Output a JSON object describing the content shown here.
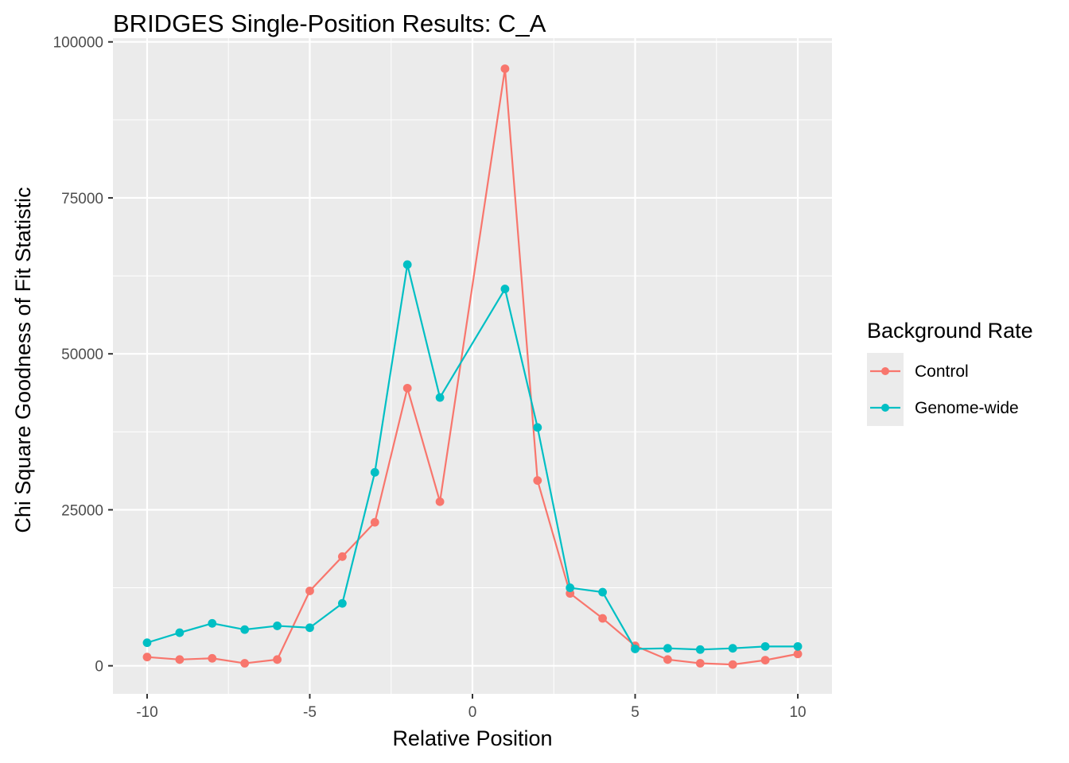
{
  "chart_data": {
    "type": "line",
    "title": "BRIDGES Single-Position Results: C_A",
    "xlabel": "Relative Position",
    "ylabel": "Chi Square Goodness of Fit Statistic",
    "x": [
      -10,
      -9,
      -8,
      -7,
      -6,
      -5,
      -4,
      -3,
      -2,
      -1,
      1,
      2,
      3,
      4,
      5,
      6,
      7,
      8,
      9,
      10
    ],
    "xlim": [
      -11.05,
      11.05
    ],
    "ylim": [
      -4500,
      100600
    ],
    "x_ticks": [
      -10,
      -5,
      0,
      5,
      10
    ],
    "x_tick_labels": [
      "-10",
      "-5",
      "0",
      "5",
      "10"
    ],
    "y_ticks": [
      0,
      25000,
      50000,
      75000,
      100000
    ],
    "y_tick_labels": [
      "0",
      "25000",
      "50000",
      "75000",
      "100000"
    ],
    "grid": true,
    "legend": {
      "title": "Background Rate",
      "position": "right"
    },
    "series": [
      {
        "name": "Control",
        "color": "#F8766D",
        "values": [
          1400,
          1000,
          1200,
          400,
          1000,
          12000,
          17500,
          23000,
          44500,
          26300,
          95700,
          29700,
          11600,
          7600,
          3200,
          1000,
          400,
          200,
          900,
          1900
        ]
      },
      {
        "name": "Genome-wide",
        "color": "#00BFC4",
        "values": [
          3700,
          5300,
          6800,
          5800,
          6400,
          6100,
          10000,
          31000,
          64300,
          43000,
          60400,
          38200,
          12500,
          11800,
          2700,
          2800,
          2600,
          2800,
          3100,
          3100
        ]
      }
    ]
  },
  "colors": {
    "panel_background": "#EBEBEB",
    "grid_line": "#FFFFFF",
    "tick_text": "#4D4D4D",
    "text": "#000000"
  }
}
